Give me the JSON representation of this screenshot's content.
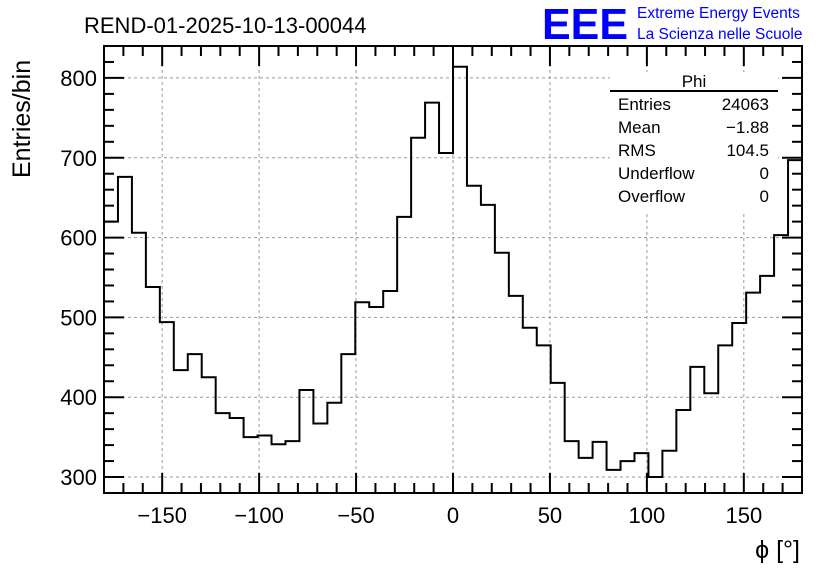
{
  "title": "REND-01-2025-10-13-00044",
  "logo": {
    "mark": "EEE",
    "line1": "Extreme Energy Events",
    "line2": "La Scienza nelle Scuole",
    "color": "#0000ff"
  },
  "stats": {
    "name": "Phi",
    "rows": [
      {
        "label": "Entries",
        "value": "24063"
      },
      {
        "label": "Mean",
        "value": "−1.88"
      },
      {
        "label": "RMS",
        "value": "104.5"
      },
      {
        "label": "Underflow",
        "value": "0"
      },
      {
        "label": "Overflow",
        "value": "0"
      }
    ]
  },
  "chart_data": {
    "type": "bar",
    "style": "step-histogram",
    "title": "REND-01-2025-10-13-00044",
    "xlabel": "ϕ [°]",
    "ylabel": "Entries/bin",
    "xlim": [
      -180,
      180
    ],
    "ylim": [
      280,
      840
    ],
    "grid": true,
    "xticks": [
      -150,
      -100,
      -50,
      0,
      50,
      100,
      150
    ],
    "xtick_labels": [
      "−150",
      "−100",
      "−50",
      "0",
      "50",
      "100",
      "150"
    ],
    "yticks": [
      300,
      400,
      500,
      600,
      700,
      800
    ],
    "ytick_labels": [
      "300",
      "400",
      "500",
      "600",
      "700",
      "800"
    ],
    "bins": 50,
    "values": [
      620,
      676,
      606,
      538,
      494,
      434,
      454,
      425,
      380,
      374,
      350,
      352,
      341,
      345,
      409,
      367,
      393,
      454,
      519,
      513,
      533,
      626,
      725,
      769,
      706,
      814,
      665,
      641,
      581,
      527,
      487,
      465,
      418,
      345,
      324,
      344,
      309,
      320,
      330,
      300,
      333,
      384,
      438,
      405,
      465,
      493,
      531,
      552,
      603,
      697
    ],
    "line_color": "#000000",
    "grid_color": "#999999"
  }
}
